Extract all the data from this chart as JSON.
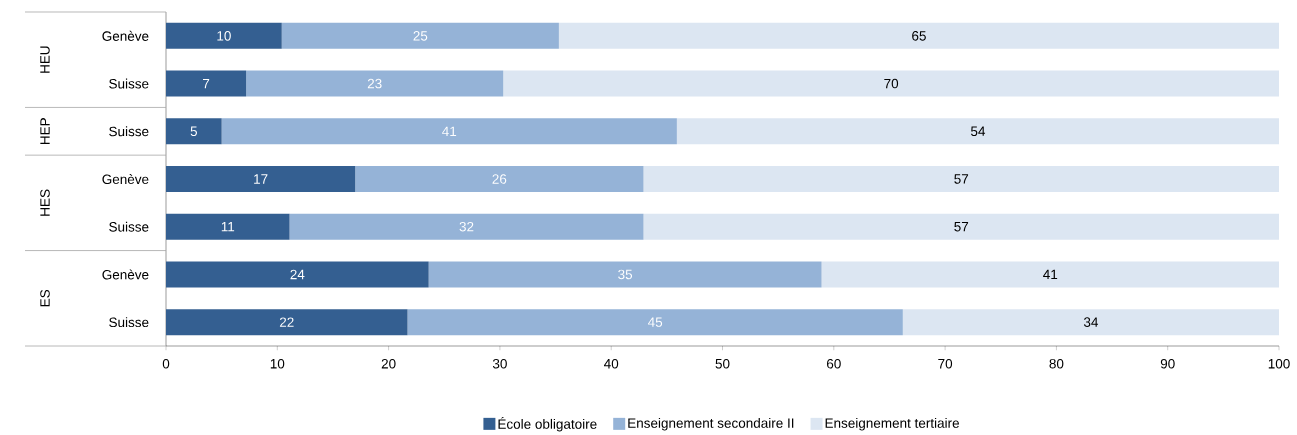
{
  "chart_data": {
    "type": "bar",
    "orientation": "horizontal",
    "stacked": true,
    "categories": [
      "Genève",
      "Suisse",
      "Suisse",
      "Genève",
      "Suisse",
      "Genève",
      "Suisse"
    ],
    "series": [
      {
        "name": "École obligatoire",
        "color": "#345f91",
        "values": [
          10.4,
          7.2,
          5.0,
          17.0,
          11.1,
          23.6,
          21.7
        ],
        "value_labels": [
          "10",
          "7",
          "5",
          "17",
          "11",
          "24",
          "22"
        ]
      },
      {
        "name": "Enseignement secondaire II",
        "color": "#95b3d7",
        "values": [
          24.9,
          23.1,
          40.9,
          25.9,
          31.8,
          35.3,
          44.5
        ],
        "value_labels": [
          "25",
          "23",
          "41",
          "26",
          "32",
          "35",
          "45"
        ]
      },
      {
        "name": "Enseignement tertiaire",
        "color": "#dce6f2",
        "values": [
          64.7,
          69.7,
          54.1,
          57.1,
          57.1,
          41.1,
          33.8
        ],
        "value_labels": [
          "65",
          "70",
          "54",
          "57",
          "57",
          "41",
          "34"
        ]
      }
    ],
    "annotations": [
      "HEU",
      "HEP",
      "HES",
      "ES"
    ],
    "xlim": [
      0,
      100
    ],
    "xticks": [
      0,
      10,
      20,
      30,
      40,
      50,
      60,
      70,
      80,
      90,
      100
    ],
    "legend": "bottom",
    "grid": false
  }
}
